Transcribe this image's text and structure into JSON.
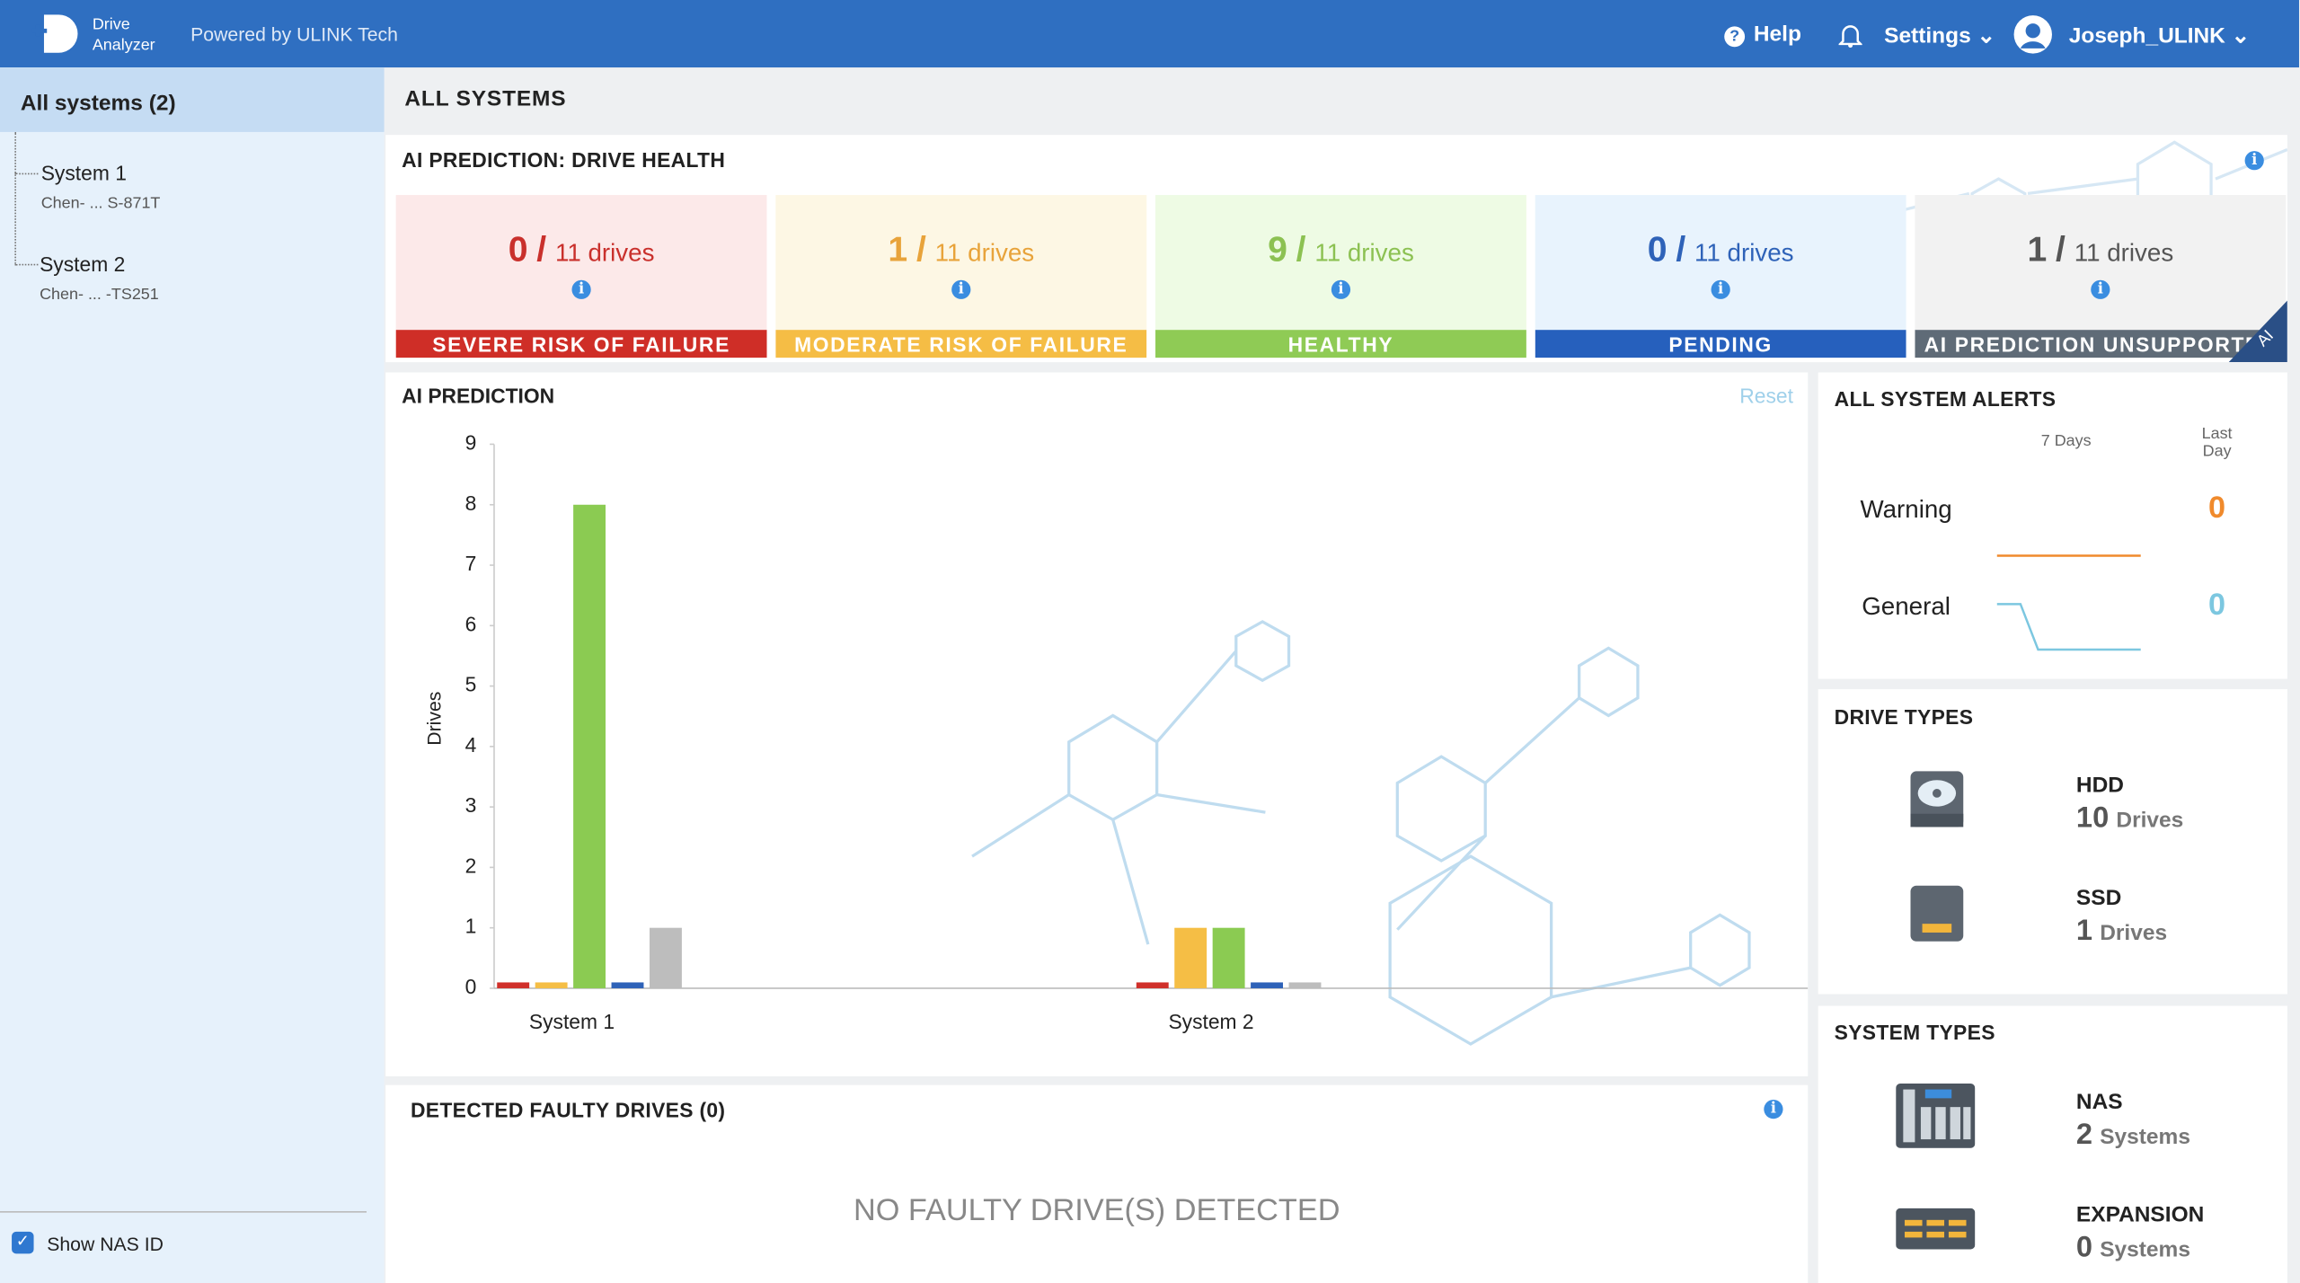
{
  "header": {
    "app_name_1": "Drive",
    "app_name_2": "Analyzer",
    "powered_by": "Powered by ULINK Tech",
    "help": "Help",
    "settings": "Settings",
    "user": "Joseph_ULINK"
  },
  "sidebar": {
    "root": "All systems (2)",
    "systems": [
      {
        "name": "System 1",
        "detail": "Chen- ... S-871T"
      },
      {
        "name": "System 2",
        "detail": "Chen- ... -TS251"
      }
    ],
    "show_nas_id": "Show NAS ID"
  },
  "page_title": "ALL SYSTEMS",
  "drive_health": {
    "title": "AI PREDICTION: DRIVE HEALTH",
    "slash": "/",
    "badge": "AI",
    "cards": [
      {
        "count": 0,
        "total": "11 drives",
        "label": "SEVERE RISK OF FAILURE",
        "color": "#c9302c",
        "band": "#cf2e27",
        "bg": "#fce9e9"
      },
      {
        "count": 1,
        "total": "11 drives",
        "label": "MODERATE RISK OF FAILURE",
        "color": "#e8a33a",
        "band": "#f5bd45",
        "bg": "#fdf7e4"
      },
      {
        "count": 9,
        "total": "11 drives",
        "label": "HEALTHY",
        "color": "#8cc152",
        "band": "#8fcb55",
        "bg": "#eefbe4"
      },
      {
        "count": 0,
        "total": "11 drives",
        "label": "PENDING",
        "color": "#2e62b8",
        "band": "#2660bd",
        "bg": "#e8f3fd"
      },
      {
        "count": 1,
        "total": "11 drives",
        "label": "AI PREDICTION UNSUPPORTED",
        "color": "#555555",
        "band": "#5f6b77",
        "bg": "#f2f2f2"
      }
    ]
  },
  "chart_data": {
    "type": "bar",
    "title": "AI PREDICTION",
    "reset": "Reset",
    "y_label": "Drives",
    "categories": [
      "System 1",
      "System 2"
    ],
    "series": [
      {
        "color": "#d0302a",
        "values": [
          0,
          0
        ]
      },
      {
        "color": "#f5be45",
        "values": [
          0,
          1
        ]
      },
      {
        "color": "#8bcb52",
        "values": [
          8,
          1
        ]
      },
      {
        "color": "#2e62b8",
        "values": [
          0,
          0
        ]
      },
      {
        "color": "#bdbdbd",
        "values": [
          1,
          0
        ]
      }
    ],
    "ylim": [
      0,
      9
    ],
    "yticks": [
      0,
      1,
      2,
      3,
      4,
      5,
      6,
      7,
      8,
      9
    ]
  },
  "alerts": {
    "title": "ALL SYSTEM ALERTS",
    "col_7days": "7 Days",
    "col_last_day_1": "Last",
    "col_last_day_2": "Day",
    "rows": [
      {
        "label": "Warning",
        "value": 0,
        "color": "#f08a2c"
      },
      {
        "label": "General",
        "value": 0,
        "color": "#7cc7e0"
      }
    ]
  },
  "drive_types": {
    "title": "DRIVE TYPES",
    "items": [
      {
        "name": "HDD",
        "count": 10,
        "unit": "Drives"
      },
      {
        "name": "SSD",
        "count": 1,
        "unit": "Drives"
      }
    ]
  },
  "system_types": {
    "title": "SYSTEM TYPES",
    "items": [
      {
        "name": "NAS",
        "count": 2,
        "unit": "Systems"
      },
      {
        "name": "EXPANSION",
        "count": 0,
        "unit": "Systems"
      }
    ]
  },
  "faulty": {
    "title": "DETECTED FAULTY DRIVES (0)",
    "empty": "NO FAULTY DRIVE(S) DETECTED"
  }
}
